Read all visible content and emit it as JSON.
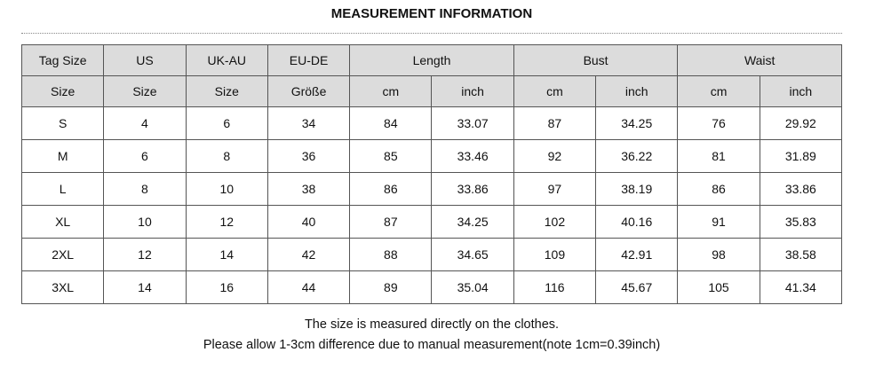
{
  "title": "MEASUREMENT INFORMATION",
  "header_row1": [
    "Tag Size",
    "US",
    "UK-AU",
    "EU-DE",
    "Length",
    "Bust",
    "Waist"
  ],
  "header_row2": [
    "Size",
    "Size",
    "Size",
    "Größe",
    "cm",
    "inch",
    "cm",
    "inch",
    "cm",
    "inch"
  ],
  "rows": [
    [
      "S",
      "4",
      "6",
      "34",
      "84",
      "33.07",
      "87",
      "34.25",
      "76",
      "29.92"
    ],
    [
      "M",
      "6",
      "8",
      "36",
      "85",
      "33.46",
      "92",
      "36.22",
      "81",
      "31.89"
    ],
    [
      "L",
      "8",
      "10",
      "38",
      "86",
      "33.86",
      "97",
      "38.19",
      "86",
      "33.86"
    ],
    [
      "XL",
      "10",
      "12",
      "40",
      "87",
      "34.25",
      "102",
      "40.16",
      "91",
      "35.83"
    ],
    [
      "2XL",
      "12",
      "14",
      "42",
      "88",
      "34.65",
      "109",
      "42.91",
      "98",
      "38.58"
    ],
    [
      "3XL",
      "14",
      "16",
      "44",
      "89",
      "35.04",
      "116",
      "45.67",
      "105",
      "41.34"
    ]
  ],
  "notes": [
    "The size is measured directly on the clothes.",
    "Please allow 1-3cm difference due to manual measurement(note 1cm=0.39inch)"
  ]
}
